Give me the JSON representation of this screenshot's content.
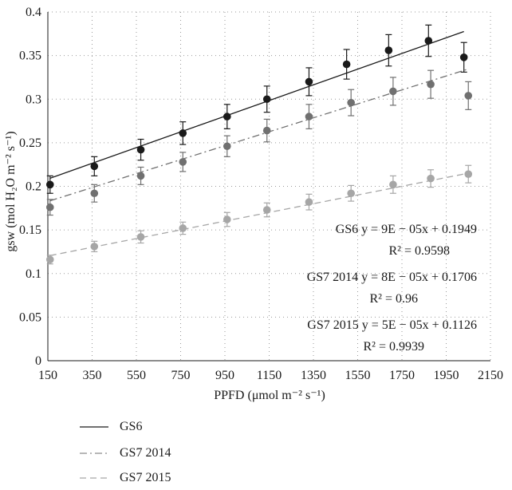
{
  "chart_data": {
    "type": "scatter",
    "x_ticks": [
      "150",
      "350",
      "550",
      "750",
      "950",
      "1150",
      "1350",
      "1550",
      "1750",
      "1950",
      "2150"
    ],
    "y_ticks": [
      "0",
      "0.05",
      "0.1",
      "0.15",
      "0.2",
      "0.25",
      "0.3",
      "0.35",
      "0.4"
    ],
    "xlim": [
      150,
      2150
    ],
    "ylim": [
      0,
      0.4
    ],
    "grid": "dotted",
    "legend_position": "bottom",
    "series": [
      {
        "name": "GS6",
        "color": "#1a1a1a",
        "line_style": "solid",
        "x": [
          160,
          360,
          570,
          760,
          960,
          1140,
          1330,
          1500,
          1690,
          1870,
          2030
        ],
        "y": [
          0.202,
          0.223,
          0.242,
          0.261,
          0.28,
          0.3,
          0.32,
          0.34,
          0.356,
          0.367,
          0.348
        ],
        "err": [
          0.01,
          0.011,
          0.012,
          0.013,
          0.014,
          0.015,
          0.016,
          0.017,
          0.018,
          0.018,
          0.017
        ],
        "fit": {
          "slope": 9e-05,
          "intercept": 0.1949,
          "x_start": 160,
          "x_end": 2030
        }
      },
      {
        "name": "GS7 2014",
        "color": "#707070",
        "line_style": "dash-dot",
        "x": [
          160,
          360,
          570,
          760,
          960,
          1140,
          1330,
          1520,
          1710,
          1880,
          2050
        ],
        "y": [
          0.176,
          0.192,
          0.212,
          0.228,
          0.246,
          0.264,
          0.28,
          0.296,
          0.309,
          0.317,
          0.304
        ],
        "err": [
          0.009,
          0.01,
          0.01,
          0.011,
          0.012,
          0.013,
          0.014,
          0.015,
          0.016,
          0.016,
          0.016
        ],
        "fit": {
          "slope": 8e-05,
          "intercept": 0.1706,
          "x_start": 160,
          "x_end": 2050
        }
      },
      {
        "name": "GS7 2015",
        "color": "#a6a6a6",
        "line_style": "dashed",
        "x": [
          160,
          360,
          570,
          760,
          960,
          1140,
          1330,
          1520,
          1710,
          1880,
          2050
        ],
        "y": [
          0.116,
          0.131,
          0.142,
          0.152,
          0.162,
          0.173,
          0.182,
          0.192,
          0.202,
          0.209,
          0.214
        ],
        "err": [
          0.005,
          0.006,
          0.007,
          0.007,
          0.008,
          0.008,
          0.009,
          0.009,
          0.01,
          0.01,
          0.01
        ],
        "fit": {
          "slope": 5e-05,
          "intercept": 0.1126,
          "x_start": 160,
          "x_end": 2050
        }
      }
    ],
    "annotations": [
      {
        "eq": "GS6  y = 9E − 05x + 0.1949",
        "r2": "R² = 0.9598"
      },
      {
        "eq": "GS7 2014  y = 8E − 05x + 0.1706",
        "r2": "R² = 0.96"
      },
      {
        "eq": "GS7 2015  y = 5E − 05x + 0.1126",
        "r2": "R² = 0.9939"
      }
    ]
  },
  "xlabel": "PPFD (μmol m⁻² s⁻¹)",
  "ylabel": "gsw (mol H₂O m⁻² s⁻¹)",
  "legend": [
    {
      "label": "GS6",
      "color": "#1a1a1a",
      "line_style": "solid"
    },
    {
      "label": "GS7 2014",
      "color": "#8c8c8c",
      "line_style": "dash-dot"
    },
    {
      "label": "GS7 2015",
      "color": "#a6a6a6",
      "line_style": "dashed"
    }
  ]
}
